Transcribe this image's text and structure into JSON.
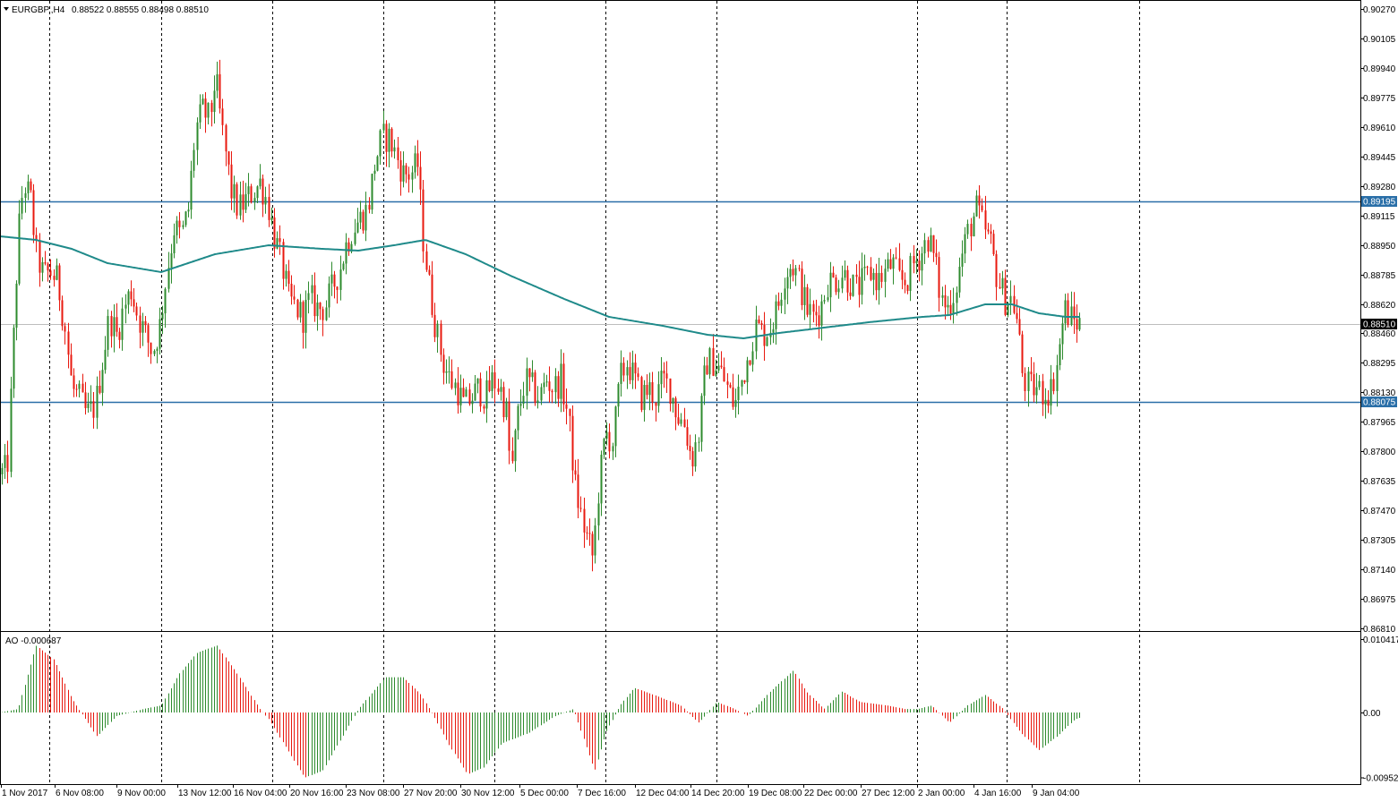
{
  "header": {
    "symbol_label": "EURGBP.,H4",
    "ohlc": "0.88522 0.88555 0.88498 0.88510",
    "indicator_label": "AO -0.000687"
  },
  "colors": {
    "bull": "#2e8b2e",
    "bear": "#e8190f",
    "wick": "#222222",
    "ma": "#1f8a8a",
    "hline": "#2a6fa8",
    "hline_tag_bg": "#2a6fa8",
    "price_tag_bg": "#000000",
    "grid_dash": "#000000"
  },
  "chart_data": [
    {
      "type": "candlestick",
      "title": "EURGBP.,H4",
      "ylim": [
        0.8681,
        0.9028
      ],
      "y_ticks": [
        "0.90270",
        "0.90105",
        "0.89940",
        "0.89775",
        "0.89610",
        "0.89445",
        "0.89280",
        "0.89115",
        "0.88950",
        "0.88785",
        "0.88620",
        "0.88460",
        "0.88295",
        "0.88130",
        "0.87965",
        "0.87800",
        "0.87635",
        "0.87470",
        "0.87305",
        "0.87140",
        "0.86975",
        "0.86810"
      ],
      "x_labels": [
        "1 Nov 2017",
        "6 Nov 08:00",
        "9 Nov 00:00",
        "13 Nov 12:00",
        "16 Nov 04:00",
        "20 Nov 16:00",
        "23 Nov 08:00",
        "27 Nov 20:00",
        "30 Nov 12:00",
        "5 Dec 00:00",
        "7 Dec 16:00",
        "12 Dec 04:00",
        "14 Dec 20:00",
        "19 Dec 08:00",
        "22 Dec 00:00",
        "27 Dec 12:00",
        "2 Jan 00:00",
        "4 Jan 16:00",
        "9 Jan 04:00"
      ],
      "separators": [
        "6 Nov 08:00",
        "9 Nov 00:00",
        "16 Nov 04:00",
        "23 Nov 08:00",
        "30 Nov 12:00",
        "7 Dec 16:00",
        "14 Dec 20:00",
        "2 Jan 00:00",
        "4 Jan 16:00"
      ],
      "horizontal_levels": [
        0.89195,
        0.88075
      ],
      "current_price": 0.8851,
      "grid": false,
      "price_path": [
        [
          0,
          0.8767
        ],
        [
          8,
          0.877
        ],
        [
          14,
          0.8835
        ],
        [
          20,
          0.89
        ],
        [
          26,
          0.893
        ],
        [
          34,
          0.892
        ],
        [
          40,
          0.889
        ],
        [
          48,
          0.8878
        ],
        [
          56,
          0.888
        ],
        [
          64,
          0.8875
        ],
        [
          72,
          0.885
        ],
        [
          80,
          0.8815
        ],
        [
          88,
          0.881
        ],
        [
          96,
          0.88
        ],
        [
          106,
          0.8805
        ],
        [
          114,
          0.883
        ],
        [
          122,
          0.8855
        ],
        [
          130,
          0.8845
        ],
        [
          138,
          0.886
        ],
        [
          146,
          0.887
        ],
        [
          154,
          0.8855
        ],
        [
          162,
          0.8845
        ],
        [
          170,
          0.8835
        ],
        [
          178,
          0.885
        ],
        [
          186,
          0.888
        ],
        [
          194,
          0.8905
        ],
        [
          202,
          0.89
        ],
        [
          210,
          0.8915
        ],
        [
          218,
          0.896
        ],
        [
          226,
          0.897
        ],
        [
          234,
          0.8965
        ],
        [
          240,
          0.899
        ],
        [
          246,
          0.8965
        ],
        [
          252,
          0.8945
        ],
        [
          258,
          0.8925
        ],
        [
          266,
          0.8915
        ],
        [
          274,
          0.892
        ],
        [
          282,
          0.8925
        ],
        [
          290,
          0.893
        ],
        [
          298,
          0.892
        ],
        [
          306,
          0.89
        ],
        [
          314,
          0.8885
        ],
        [
          322,
          0.8865
        ],
        [
          330,
          0.886
        ],
        [
          338,
          0.8855
        ],
        [
          346,
          0.8865
        ],
        [
          354,
          0.886
        ],
        [
          362,
          0.886
        ],
        [
          370,
          0.887
        ],
        [
          378,
          0.888
        ],
        [
          386,
          0.8895
        ],
        [
          394,
          0.8905
        ],
        [
          402,
          0.891
        ],
        [
          410,
          0.8915
        ],
        [
          418,
          0.894
        ],
        [
          426,
          0.8955
        ],
        [
          434,
          0.8955
        ],
        [
          442,
          0.8945
        ],
        [
          450,
          0.8935
        ],
        [
          458,
          0.8935
        ],
        [
          466,
          0.894
        ],
        [
          472,
          0.89
        ],
        [
          478,
          0.8875
        ],
        [
          486,
          0.885
        ],
        [
          494,
          0.883
        ],
        [
          502,
          0.882
        ],
        [
          510,
          0.8815
        ],
        [
          518,
          0.8805
        ],
        [
          526,
          0.881
        ],
        [
          534,
          0.8815
        ],
        [
          542,
          0.881
        ],
        [
          550,
          0.882
        ],
        [
          558,
          0.8815
        ],
        [
          566,
          0.88
        ],
        [
          570,
          0.8765
        ],
        [
          578,
          0.88
        ],
        [
          586,
          0.882
        ],
        [
          594,
          0.8815
        ],
        [
          602,
          0.881
        ],
        [
          610,
          0.882
        ],
        [
          618,
          0.8815
        ],
        [
          626,
          0.882
        ],
        [
          634,
          0.88
        ],
        [
          642,
          0.876
        ],
        [
          650,
          0.874
        ],
        [
          656,
          0.873
        ],
        [
          662,
          0.872
        ],
        [
          668,
          0.876
        ],
        [
          676,
          0.879
        ],
        [
          684,
          0.8785
        ],
        [
          692,
          0.882
        ],
        [
          700,
          0.883
        ],
        [
          708,
          0.882
        ],
        [
          716,
          0.881
        ],
        [
          724,
          0.8815
        ],
        [
          732,
          0.881
        ],
        [
          740,
          0.882
        ],
        [
          748,
          0.8815
        ],
        [
          756,
          0.88
        ],
        [
          764,
          0.8795
        ],
        [
          772,
          0.8775
        ],
        [
          780,
          0.879
        ],
        [
          788,
          0.883
        ],
        [
          796,
          0.883
        ],
        [
          804,
          0.8825
        ],
        [
          812,
          0.8815
        ],
        [
          820,
          0.8805
        ],
        [
          828,
          0.882
        ],
        [
          836,
          0.8835
        ],
        [
          844,
          0.885
        ],
        [
          852,
          0.8845
        ],
        [
          860,
          0.885
        ],
        [
          868,
          0.886
        ],
        [
          876,
          0.888
        ],
        [
          884,
          0.8885
        ],
        [
          892,
          0.8875
        ],
        [
          900,
          0.886
        ],
        [
          908,
          0.8855
        ],
        [
          916,
          0.886
        ],
        [
          924,
          0.8875
        ],
        [
          932,
          0.8875
        ],
        [
          940,
          0.888
        ],
        [
          948,
          0.8875
        ],
        [
          956,
          0.887
        ],
        [
          964,
          0.8875
        ],
        [
          972,
          0.888
        ],
        [
          980,
          0.8875
        ],
        [
          988,
          0.888
        ],
        [
          996,
          0.8885
        ],
        [
          1004,
          0.8875
        ],
        [
          1012,
          0.8875
        ],
        [
          1020,
          0.8885
        ],
        [
          1028,
          0.889
        ],
        [
          1036,
          0.89
        ],
        [
          1044,
          0.8885
        ],
        [
          1050,
          0.8865
        ],
        [
          1058,
          0.886
        ],
        [
          1066,
          0.887
        ],
        [
          1074,
          0.889
        ],
        [
          1082,
          0.8905
        ],
        [
          1090,
          0.8915
        ],
        [
          1098,
          0.8905
        ],
        [
          1106,
          0.8895
        ],
        [
          1114,
          0.8875
        ],
        [
          1122,
          0.8865
        ],
        [
          1130,
          0.8865
        ],
        [
          1136,
          0.885
        ],
        [
          1142,
          0.882
        ],
        [
          1150,
          0.8815
        ],
        [
          1158,
          0.8815
        ],
        [
          1166,
          0.8812
        ],
        [
          1174,
          0.8815
        ],
        [
          1182,
          0.8835
        ],
        [
          1188,
          0.886
        ],
        [
          1194,
          0.8855
        ],
        [
          1200,
          0.8852
        ],
        [
          1207,
          0.8851
        ]
      ],
      "ma_path": [
        [
          0,
          0.89
        ],
        [
          40,
          0.8898
        ],
        [
          80,
          0.8893
        ],
        [
          120,
          0.8885
        ],
        [
          180,
          0.888
        ],
        [
          240,
          0.889
        ],
        [
          300,
          0.8895
        ],
        [
          360,
          0.8893
        ],
        [
          400,
          0.8892
        ],
        [
          440,
          0.8895
        ],
        [
          475,
          0.8898
        ],
        [
          520,
          0.889
        ],
        [
          570,
          0.8878
        ],
        [
          630,
          0.8865
        ],
        [
          680,
          0.8855
        ],
        [
          740,
          0.885
        ],
        [
          790,
          0.8845
        ],
        [
          830,
          0.8843
        ],
        [
          870,
          0.8846
        ],
        [
          920,
          0.8849
        ],
        [
          970,
          0.8852
        ],
        [
          1030,
          0.8855
        ],
        [
          1060,
          0.8856
        ],
        [
          1100,
          0.8862
        ],
        [
          1130,
          0.8862
        ],
        [
          1160,
          0.8857
        ],
        [
          1190,
          0.8855
        ],
        [
          1207,
          0.8855
        ]
      ]
    },
    {
      "type": "histogram",
      "title": "AO",
      "value_label": "-0.000687",
      "ylim": [
        -0.009526,
        0.010417
      ],
      "y_ticks": [
        "0.010417",
        "0.00",
        "-0.009526"
      ],
      "nodes": [
        [
          0,
          0.0
        ],
        [
          20,
          0.0005
        ],
        [
          40,
          0.0095
        ],
        [
          60,
          0.0075
        ],
        [
          80,
          0.002
        ],
        [
          108,
          -0.0035
        ],
        [
          130,
          -0.0005
        ],
        [
          160,
          0.0005
        ],
        [
          180,
          0.001
        ],
        [
          200,
          0.0055
        ],
        [
          220,
          0.0085
        ],
        [
          242,
          0.0095
        ],
        [
          262,
          0.006
        ],
        [
          290,
          0.0005
        ],
        [
          300,
          -0.001
        ],
        [
          340,
          -0.0095
        ],
        [
          360,
          -0.0085
        ],
        [
          380,
          -0.004
        ],
        [
          400,
          0.0005
        ],
        [
          430,
          0.005
        ],
        [
          450,
          0.005
        ],
        [
          470,
          0.0025
        ],
        [
          484,
          -0.0005
        ],
        [
          500,
          -0.0045
        ],
        [
          522,
          -0.009
        ],
        [
          540,
          -0.008
        ],
        [
          560,
          -0.0045
        ],
        [
          590,
          -0.003
        ],
        [
          620,
          -0.0005
        ],
        [
          640,
          0.0005
        ],
        [
          664,
          -0.0085
        ],
        [
          676,
          -0.003
        ],
        [
          692,
          0.001
        ],
        [
          708,
          0.0035
        ],
        [
          730,
          0.0025
        ],
        [
          760,
          0.001
        ],
        [
          780,
          -0.0015
        ],
        [
          800,
          0.0015
        ],
        [
          820,
          0.0005
        ],
        [
          835,
          -0.0005
        ],
        [
          860,
          0.003
        ],
        [
          886,
          0.006
        ],
        [
          900,
          0.003
        ],
        [
          920,
          0.0005
        ],
        [
          940,
          0.003
        ],
        [
          960,
          0.0015
        ],
        [
          990,
          0.001
        ],
        [
          1010,
          0.0005
        ],
        [
          1025,
          0.0005
        ],
        [
          1040,
          0.001
        ],
        [
          1060,
          -0.0015
        ],
        [
          1080,
          0.001
        ],
        [
          1100,
          0.0025
        ],
        [
          1120,
          0.0005
        ],
        [
          1140,
          -0.003
        ],
        [
          1160,
          -0.0055
        ],
        [
          1180,
          -0.0035
        ],
        [
          1200,
          -0.001
        ],
        [
          1207,
          -0.0007
        ]
      ]
    }
  ]
}
